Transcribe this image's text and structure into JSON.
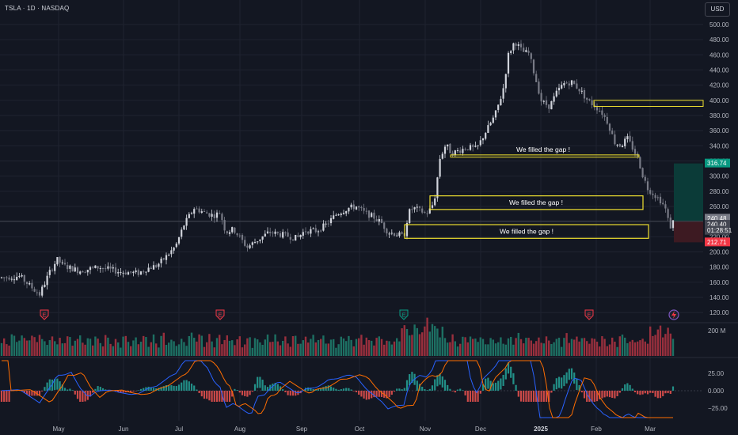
{
  "header": {
    "title": "TSLA · 1D · NASDAQ",
    "currency": "USD"
  },
  "price_axis": {
    "ticks": [
      "500.00",
      "480.00",
      "460.00",
      "440.00",
      "420.00",
      "400.00",
      "380.00",
      "360.00",
      "340.00",
      "320.00",
      "300.00",
      "280.00",
      "260.00",
      "240.00",
      "220.00",
      "200.00",
      "180.00",
      "160.00",
      "140.00",
      "120.00"
    ],
    "labels": [
      {
        "text": "316.74",
        "color": "#089981"
      },
      {
        "text": "240.48",
        "color": "#787b86"
      },
      {
        "text": "240.40",
        "color": "#5d606b"
      },
      {
        "text": "01:28:51",
        "color": "#5d606b"
      },
      {
        "text": "212.71",
        "color": "#f23645"
      }
    ]
  },
  "time_axis": {
    "labels": [
      "May",
      "Jun",
      "Jul",
      "Aug",
      "Sep",
      "Oct",
      "Nov",
      "Dec",
      "2025",
      "Feb",
      "Mar"
    ]
  },
  "annotations": [
    "We filled the gap !",
    "We filled the gap !",
    "We filled the gap !"
  ],
  "events": {
    "earnings": "E",
    "dividend": "E"
  },
  "volume_axis": {
    "label": "200 M"
  },
  "macd_axis": {
    "ticks": [
      "25.00",
      "0.000",
      "−25.00"
    ]
  },
  "colors": {
    "up": "#089981",
    "down": "#f23645",
    "candle_up": "#d1d4dc",
    "candle_down": "#787b86",
    "box": "#f0e130"
  },
  "chart_data": {
    "type": "candlestick",
    "symbol": "TSLA",
    "interval": "1D",
    "ylim": [
      110,
      510
    ],
    "x": [
      "May",
      "Jun",
      "Jul",
      "Aug",
      "Sep",
      "Oct",
      "Nov",
      "Dec",
      "2025",
      "Feb",
      "Mar"
    ],
    "close_approx": [
      170,
      162,
      178,
      232,
      210,
      240,
      248,
      215,
      262,
      320,
      350,
      440,
      420,
      405,
      395,
      380,
      340,
      290,
      240
    ],
    "gap_zones": [
      {
        "label": "We filled the gap !",
        "low": 325,
        "high": 328
      },
      {
        "label": "We filled the gap !",
        "low": 256,
        "high": 274
      },
      {
        "label": "We filled the gap !",
        "low": 218,
        "high": 236
      },
      {
        "low": 392,
        "high": 400
      }
    ],
    "position": {
      "target": 316.74,
      "entry": 240.4,
      "stop": 212.71
    }
  }
}
